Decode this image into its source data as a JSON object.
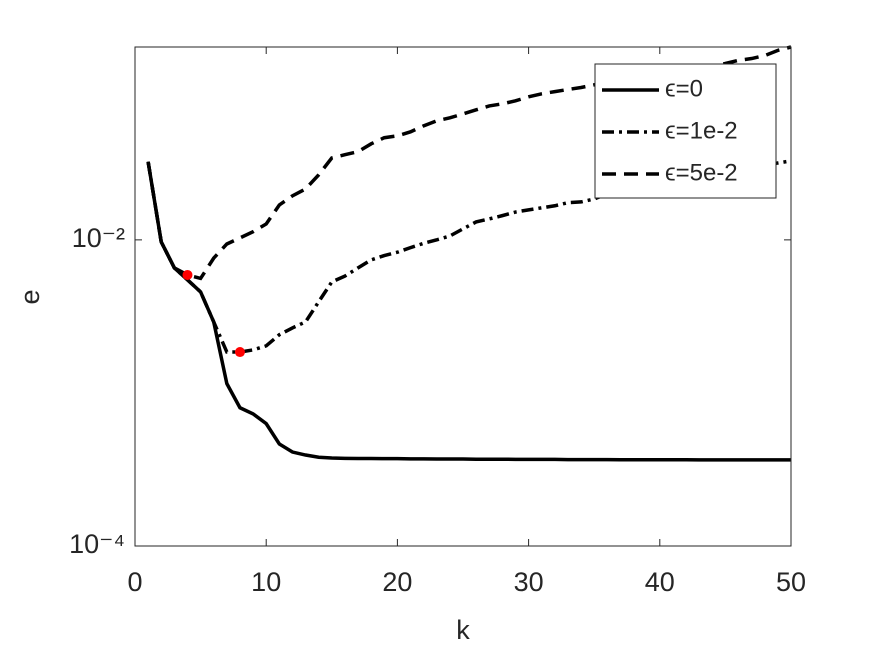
{
  "chart_data": {
    "type": "line",
    "x_label": "k",
    "y_label": "e",
    "x": [
      1,
      2,
      3,
      4,
      5,
      6,
      7,
      8,
      9,
      10,
      11,
      12,
      13,
      14,
      15,
      16,
      17,
      18,
      19,
      20,
      21,
      22,
      23,
      24,
      25,
      26,
      27,
      28,
      29,
      30,
      31,
      32,
      33,
      34,
      35,
      36,
      37,
      38,
      39,
      40,
      41,
      42,
      43,
      44,
      45,
      46,
      47,
      48,
      49,
      50
    ],
    "series": [
      {
        "name": "ϵ=0",
        "color": "#000000",
        "style": "solid",
        "values": [
          0.0324,
          0.0097,
          0.00656,
          0.00548,
          0.00457,
          0.00291,
          0.00115,
          0.0008,
          0.00073,
          0.00063,
          0.000464,
          0.000411,
          0.000393,
          0.00038,
          0.000376,
          0.000374,
          0.000373,
          0.000373,
          0.000372,
          0.000372,
          0.000371,
          0.000371,
          0.00037,
          0.00037,
          0.00037,
          0.000369,
          0.000369,
          0.000369,
          0.000368,
          0.000368,
          0.000368,
          0.000368,
          0.000367,
          0.000367,
          0.000367,
          0.000367,
          0.000366,
          0.000366,
          0.000366,
          0.000366,
          0.000366,
          0.000366,
          0.000365,
          0.000365,
          0.000365,
          0.000365,
          0.000365,
          0.000365,
          0.000365,
          0.000365
        ]
      },
      {
        "name": "ϵ=1e-2",
        "color": "#000000",
        "style": "dashdot",
        "values": [
          0.0324,
          0.0097,
          0.00656,
          0.00548,
          0.00457,
          0.00291,
          0.00185,
          0.00185,
          0.00191,
          0.00203,
          0.0024,
          0.00266,
          0.00291,
          0.00394,
          0.00531,
          0.0058,
          0.00656,
          0.0074,
          0.0079,
          0.0083,
          0.0089,
          0.0095,
          0.01,
          0.0106,
          0.0118,
          0.0131,
          0.0137,
          0.0144,
          0.0152,
          0.0157,
          0.0162,
          0.0167,
          0.0175,
          0.0177,
          0.0185,
          0.02,
          0.0209,
          0.0212,
          0.0219,
          0.0225,
          0.0232,
          0.0243,
          0.0254,
          0.0262,
          0.0274,
          0.0286,
          0.03,
          0.0305,
          0.0318,
          0.0328
        ]
      },
      {
        "name": "ϵ=5e-2",
        "color": "#000000",
        "style": "dashed",
        "values": [
          0.0324,
          0.0097,
          0.00656,
          0.0059,
          0.0056,
          0.0076,
          0.0094,
          0.0103,
          0.0113,
          0.0127,
          0.0169,
          0.0194,
          0.0215,
          0.0266,
          0.0343,
          0.036,
          0.0377,
          0.0424,
          0.0465,
          0.0478,
          0.0508,
          0.0556,
          0.06,
          0.0627,
          0.0665,
          0.0707,
          0.075,
          0.0774,
          0.081,
          0.086,
          0.09,
          0.093,
          0.096,
          0.099,
          0.103,
          0.106,
          0.11,
          0.112,
          0.115,
          0.117,
          0.12,
          0.124,
          0.128,
          0.136,
          0.142,
          0.149,
          0.153,
          0.16,
          0.173,
          0.182
        ]
      }
    ],
    "markers": {
      "x": [
        4,
        8
      ],
      "values": [
        0.0059,
        0.00185
      ],
      "color": "#ff0000"
    },
    "xlim": [
      0,
      50
    ],
    "xticks": [
      0,
      10,
      20,
      30,
      40,
      50
    ],
    "ylim": [
      0.0001,
      0.182
    ],
    "log_y": true,
    "yticks": [
      {
        "value": 0.0001,
        "label": "10⁻⁴"
      },
      {
        "value": 0.01,
        "label": "10⁻²"
      }
    ],
    "legend": "northeast"
  }
}
